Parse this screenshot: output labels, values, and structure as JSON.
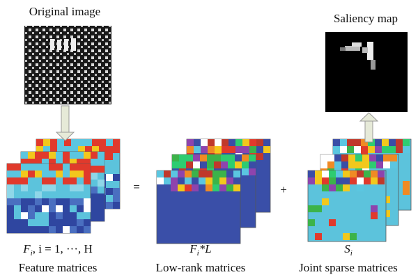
{
  "original_image": {
    "title": "Original image"
  },
  "saliency_map": {
    "title": "Saliency map"
  },
  "operators": {
    "equals": "=",
    "plus": "+"
  },
  "feature_matrices": {
    "symbol": "F",
    "subscript": "i",
    "symbol_rest": ", i = 1, ···, H",
    "caption": "Feature matrices"
  },
  "low_rank_matrices": {
    "symbol": "F",
    "subscript": "i",
    "symbol_rest": "*L",
    "caption": "Low-rank matrices"
  },
  "sparse_matrices": {
    "symbol": "S",
    "subscript": "i",
    "caption": "Joint sparse matrices"
  }
}
